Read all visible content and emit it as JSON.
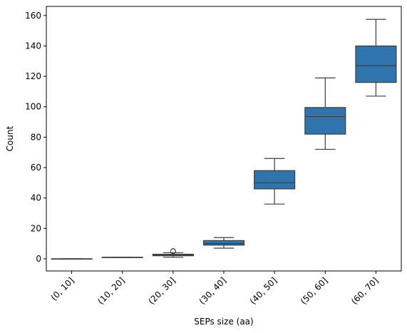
{
  "chart_data": {
    "type": "box",
    "xlabel": "SEPs size (aa)",
    "ylabel": "Count",
    "ylim": [
      -8,
      166
    ],
    "yticks": [
      0,
      20,
      40,
      60,
      80,
      100,
      120,
      140,
      160
    ],
    "categories": [
      "(0, 10]",
      "(10, 20]",
      "(20, 30]",
      "(30, 40]",
      "(40, 50]",
      "(50, 60]",
      "(60, 70]"
    ],
    "boxes": [
      {
        "category": "(0, 10]",
        "whisker_low": 0,
        "q1": 0,
        "median": 0,
        "q3": 0,
        "whisker_high": 0,
        "outliers": []
      },
      {
        "category": "(10, 20]",
        "whisker_low": 1,
        "q1": 1,
        "median": 1,
        "q3": 1,
        "whisker_high": 1,
        "outliers": []
      },
      {
        "category": "(20, 30]",
        "whisker_low": 1,
        "q1": 2,
        "median": 2.5,
        "q3": 3,
        "whisker_high": 4,
        "outliers": [
          5
        ]
      },
      {
        "category": "(30, 40]",
        "whisker_low": 7,
        "q1": 9,
        "median": 10,
        "q3": 12,
        "whisker_high": 14,
        "outliers": []
      },
      {
        "category": "(40, 50]",
        "whisker_low": 36,
        "q1": 46,
        "median": 50,
        "q3": 58,
        "whisker_high": 66,
        "outliers": []
      },
      {
        "category": "(50, 60]",
        "whisker_low": 72,
        "q1": 82,
        "median": 93.5,
        "q3": 99.5,
        "whisker_high": 119,
        "outliers": []
      },
      {
        "category": "(60, 70]",
        "whisker_low": 107,
        "q1": 116,
        "median": 127,
        "q3": 140,
        "whisker_high": 157.5,
        "outliers": []
      }
    ],
    "box_color": "#2f74ad",
    "line_color": "#3d3d3d",
    "grid": false,
    "legend": "none"
  }
}
